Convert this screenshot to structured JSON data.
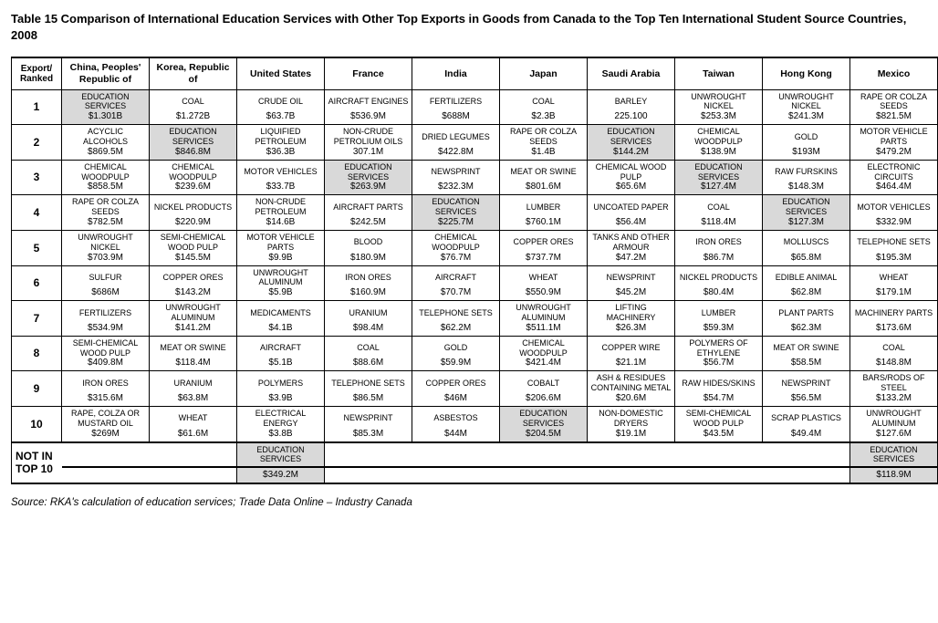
{
  "title": "Table 15 Comparison of International Education Services with Other Top Exports in Goods from Canada to the Top Ten International Student Source Countries, 2008",
  "rankHeader": "Export/ Ranked",
  "countries": [
    "China, Peoples' Republic of",
    "Korea, Republic of",
    "United States",
    "France",
    "India",
    "Japan",
    "Saudi Arabia",
    "Taiwan",
    "Hong Kong",
    "Mexico"
  ],
  "ranks": [
    "1",
    "2",
    "3",
    "4",
    "5",
    "6",
    "7",
    "8",
    "9",
    "10"
  ],
  "rows": [
    [
      {
        "item": "EDUCATION SERVICES",
        "val": "$1.301B",
        "hl": true
      },
      {
        "item": "COAL",
        "val": "$1.272B"
      },
      {
        "item": "CRUDE OIL",
        "val": "$63.7B"
      },
      {
        "item": "AIRCRAFT ENGINES",
        "val": "$536.9M"
      },
      {
        "item": "FERTILIZERS",
        "val": "$688M"
      },
      {
        "item": "COAL",
        "val": "$2.3B"
      },
      {
        "item": "BARLEY",
        "val": "225.100"
      },
      {
        "item": "UNWROUGHT NICKEL",
        "val": "$253.3M"
      },
      {
        "item": "UNWROUGHT NICKEL",
        "val": "$241.3M"
      },
      {
        "item": "RAPE OR COLZA SEEDS",
        "val": "$821.5M"
      }
    ],
    [
      {
        "item": "ACYCLIC ALCOHOLS",
        "val": "$869.5M"
      },
      {
        "item": "EDUCATION SERVICES",
        "val": "$846.8M",
        "hl": true
      },
      {
        "item": "LIQUIFIED PETROLEUM",
        "val": "$36.3B"
      },
      {
        "item": "NON-CRUDE PETROLIUM OILS",
        "val": "307.1M"
      },
      {
        "item": "DRIED LEGUMES",
        "val": "$422.8M"
      },
      {
        "item": "RAPE OR COLZA SEEDS",
        "val": "$1.4B"
      },
      {
        "item": "EDUCATION SERVICES",
        "val": "$144.2M",
        "hl": true
      },
      {
        "item": "CHEMICAL WOODPULP",
        "val": "$138.9M"
      },
      {
        "item": "GOLD",
        "val": "$193M"
      },
      {
        "item": "MOTOR VEHICLE PARTS",
        "val": "$479.2M"
      }
    ],
    [
      {
        "item": "CHEMICAL WOODPULP",
        "val": "$858.5M"
      },
      {
        "item": "CHEMICAL WOODPULP",
        "val": "$239.6M"
      },
      {
        "item": "MOTOR VEHICLES",
        "val": "$33.7B"
      },
      {
        "item": "EDUCATION SERVICES",
        "val": "$263.9M",
        "hl": true
      },
      {
        "item": "NEWSPRINT",
        "val": "$232.3M"
      },
      {
        "item": "MEAT OR SWINE",
        "val": "$801.6M"
      },
      {
        "item": "CHEMICAL WOOD PULP",
        "val": "$65.6M"
      },
      {
        "item": "EDUCATION SERVICES",
        "val": "$127.4M",
        "hl": true
      },
      {
        "item": "RAW FURSKINS",
        "val": "$148.3M"
      },
      {
        "item": "ELECTRONIC CIRCUITS",
        "val": "$464.4M"
      }
    ],
    [
      {
        "item": "RAPE OR COLZA SEEDS",
        "val": "$782.5M"
      },
      {
        "item": "NICKEL PRODUCTS",
        "val": "$220.9M"
      },
      {
        "item": "NON-CRUDE PETROLEUM",
        "val": "$14.6B"
      },
      {
        "item": "AIRCRAFT PARTS",
        "val": "$242.5M"
      },
      {
        "item": "EDUCATION SERVICES",
        "val": "$225.7M",
        "hl": true
      },
      {
        "item": "LUMBER",
        "val": "$760.1M"
      },
      {
        "item": "UNCOATED PAPER",
        "val": "$56.4M"
      },
      {
        "item": "COAL",
        "val": "$118.4M"
      },
      {
        "item": "EDUCATION SERVICES",
        "val": "$127.3M",
        "hl": true
      },
      {
        "item": "MOTOR VEHICLES",
        "val": "$332.9M"
      }
    ],
    [
      {
        "item": "UNWROUGHT NICKEL",
        "val": "$703.9M"
      },
      {
        "item": "SEMI-CHEMICAL WOOD PULP",
        "val": "$145.5M"
      },
      {
        "item": "MOTOR VEHICLE PARTS",
        "val": "$9.9B"
      },
      {
        "item": "BLOOD",
        "val": "$180.9M"
      },
      {
        "item": "CHEMICAL WOODPULP",
        "val": "$76.7M"
      },
      {
        "item": "COPPER ORES",
        "val": "$737.7M"
      },
      {
        "item": "TANKS AND OTHER ARMOUR",
        "val": "$47.2M"
      },
      {
        "item": "IRON ORES",
        "val": "$86.7M"
      },
      {
        "item": "MOLLUSCS",
        "val": "$65.8M"
      },
      {
        "item": "TELEPHONE SETS",
        "val": "$195.3M"
      }
    ],
    [
      {
        "item": "SULFUR",
        "val": "$686M"
      },
      {
        "item": "COPPER ORES",
        "val": "$143.2M"
      },
      {
        "item": "UNWROUGHT ALUMINUM",
        "val": "$5.9B"
      },
      {
        "item": "IRON ORES",
        "val": "$160.9M"
      },
      {
        "item": "AIRCRAFT",
        "val": "$70.7M"
      },
      {
        "item": "WHEAT",
        "val": "$550.9M"
      },
      {
        "item": "NEWSPRINT",
        "val": "$45.2M"
      },
      {
        "item": "NICKEL PRODUCTS",
        "val": "$80.4M"
      },
      {
        "item": "EDIBLE ANIMAL",
        "val": "$62.8M"
      },
      {
        "item": "WHEAT",
        "val": "$179.1M"
      }
    ],
    [
      {
        "item": "FERTILIZERS",
        "val": "$534.9M"
      },
      {
        "item": "UNWROUGHT ALUMINUM",
        "val": "$141.2M"
      },
      {
        "item": "MEDICAMENTS",
        "val": "$4.1B"
      },
      {
        "item": "URANIUM",
        "val": "$98.4M"
      },
      {
        "item": "TELEPHONE SETS",
        "val": "$62.2M"
      },
      {
        "item": "UNWROUGHT ALUMINUM",
        "val": "$511.1M"
      },
      {
        "item": "LIFTING MACHINERY",
        "val": "$26.3M"
      },
      {
        "item": "LUMBER",
        "val": "$59.3M"
      },
      {
        "item": "PLANT PARTS",
        "val": "$62.3M"
      },
      {
        "item": "MACHINERY PARTS",
        "val": "$173.6M"
      }
    ],
    [
      {
        "item": "SEMI-CHEMICAL WOOD PULP",
        "val": "$409.8M"
      },
      {
        "item": "MEAT OR SWINE",
        "val": "$118.4M"
      },
      {
        "item": "AIRCRAFT",
        "val": "$5.1B"
      },
      {
        "item": "COAL",
        "val": "$88.6M"
      },
      {
        "item": "GOLD",
        "val": "$59.9M"
      },
      {
        "item": "CHEMICAL WOODPULP",
        "val": "$421.4M"
      },
      {
        "item": "COPPER WIRE",
        "val": "$21.1M"
      },
      {
        "item": "POLYMERS OF ETHYLENE",
        "val": "$56.7M"
      },
      {
        "item": "MEAT OR SWINE",
        "val": "$58.5M"
      },
      {
        "item": "COAL",
        "val": "$148.8M"
      }
    ],
    [
      {
        "item": "IRON ORES",
        "val": "$315.6M"
      },
      {
        "item": "URANIUM",
        "val": "$63.8M"
      },
      {
        "item": "POLYMERS",
        "val": "$3.9B"
      },
      {
        "item": "TELEPHONE SETS",
        "val": "$86.5M"
      },
      {
        "item": "COPPER ORES",
        "val": "$46M"
      },
      {
        "item": "COBALT",
        "val": "$206.6M"
      },
      {
        "item": "ASH & RESIDUES CONTAINING METAL",
        "val": "$20.6M"
      },
      {
        "item": "RAW HIDES/SKINS",
        "val": "$54.7M"
      },
      {
        "item": "NEWSPRINT",
        "val": "$56.5M"
      },
      {
        "item": "BARS/RODS OF STEEL",
        "val": "$133.2M"
      }
    ],
    [
      {
        "item": "RAPE, COLZA OR MUSTARD OIL",
        "val": "$269M"
      },
      {
        "item": "WHEAT",
        "val": "$61.6M"
      },
      {
        "item": "ELECTRICAL ENERGY",
        "val": "$3.8B"
      },
      {
        "item": "NEWSPRINT",
        "val": "$85.3M"
      },
      {
        "item": "ASBESTOS",
        "val": "$44M"
      },
      {
        "item": "EDUCATION SERVICES",
        "val": "$204.5M",
        "hl": true
      },
      {
        "item": "NON-DOMESTIC DRYERS",
        "val": "$19.1M"
      },
      {
        "item": "SEMI-CHEMICAL WOOD PULP",
        "val": "$43.5M"
      },
      {
        "item": "SCRAP PLASTICS",
        "val": "$49.4M"
      },
      {
        "item": "UNWROUGHT ALUMINUM",
        "val": "$127.6M"
      }
    ]
  ],
  "notInTop": {
    "label": "NOT IN TOP 10",
    "cells": [
      null,
      null,
      {
        "item": "EDUCATION SERVICES",
        "val": "$349.2M",
        "hl": true
      },
      null,
      null,
      null,
      null,
      null,
      null,
      {
        "item": "EDUCATION SERVICES",
        "val": "$118.9M",
        "hl": true
      }
    ]
  },
  "source": "Source: RKA's calculation of education services; Trade Data Online – Industry Canada"
}
